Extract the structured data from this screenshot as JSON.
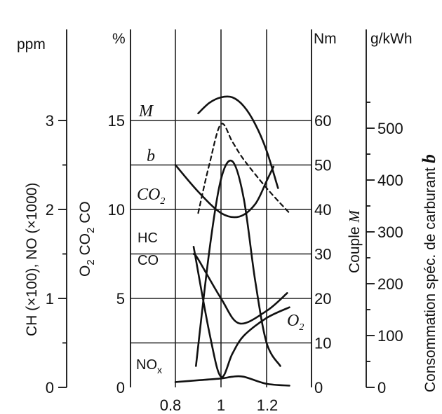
{
  "chart_data": {
    "type": "line",
    "x_axis": {
      "ticks": [
        0.8,
        1,
        1.2
      ],
      "tick_labels": [
        "0.8",
        "1",
        "1.2"
      ],
      "range": [
        0.78,
        1.32
      ]
    },
    "axes": {
      "ppm": {
        "unit": "ppm",
        "title": "CH (×100), NO (×1000)",
        "ticks": [
          0,
          1,
          2,
          3
        ],
        "range": [
          0,
          3.5
        ]
      },
      "percent": {
        "unit": "%",
        "title_parts": [
          "O",
          "2",
          "  CO",
          "2",
          "  CO"
        ],
        "ticks": [
          0,
          5,
          10,
          15
        ],
        "range": [
          0,
          17.5
        ]
      },
      "torque": {
        "unit": "Nm",
        "title_main": "Couple ",
        "title_symbol": "M",
        "ticks": [
          0,
          10,
          20,
          30,
          40,
          50,
          60
        ],
        "range": [
          0,
          70
        ]
      },
      "bsfc": {
        "unit": "g/kWh",
        "title_main": "Consommation spéc. de carburant ",
        "title_symbol": "b",
        "ticks": [
          0,
          100,
          200,
          300,
          400,
          500
        ],
        "range": [
          0,
          580
        ]
      }
    },
    "series": [
      {
        "name": "M",
        "italic": true,
        "axis": "percent",
        "style": "solid",
        "x": [
          0.9,
          0.95,
          1.0,
          1.05,
          1.1,
          1.15,
          1.2,
          1.25
        ],
        "y": [
          15.4,
          16.0,
          16.3,
          16.3,
          15.8,
          14.8,
          13.3,
          11.2
        ]
      },
      {
        "name": "b",
        "italic": true,
        "axis": "percent",
        "style": "solid",
        "x": [
          0.8,
          0.9,
          1.0,
          1.08,
          1.15,
          1.2,
          1.23
        ],
        "y": [
          12.5,
          11.0,
          9.8,
          9.6,
          10.3,
          11.6,
          12.4
        ]
      },
      {
        "name": "CO2",
        "label_main": "CO",
        "label_sub": "2",
        "italic": true,
        "axis": "percent",
        "style": "dashed",
        "x": [
          0.9,
          0.95,
          1.0,
          1.05,
          1.1,
          1.2,
          1.3
        ],
        "y": [
          9.8,
          12.6,
          14.8,
          13.8,
          12.8,
          11.2,
          9.8
        ]
      },
      {
        "name": "HC",
        "axis": "percent",
        "style": "solid",
        "x": [
          0.89,
          0.95,
          1.0,
          1.05,
          1.1,
          1.15,
          1.2,
          1.26
        ],
        "y": [
          1.2,
          7.8,
          11.7,
          12.7,
          10.6,
          6.0,
          2.5,
          1.2
        ]
      },
      {
        "name": "CO",
        "axis": "percent",
        "style": "solid",
        "x": [
          0.88,
          0.9,
          1.0,
          1.08,
          1.2,
          1.29
        ],
        "y": [
          7.5,
          7.2,
          5.0,
          3.6,
          4.3,
          5.3
        ]
      },
      {
        "name": "O2",
        "label_main": "O",
        "label_sub": "2",
        "italic": true,
        "axis": "percent",
        "style": "solid",
        "x": [
          0.88,
          0.95,
          1.0,
          1.05,
          1.1,
          1.2,
          1.3
        ],
        "y": [
          7.9,
          3.0,
          0.6,
          1.9,
          2.9,
          3.9,
          4.5
        ]
      },
      {
        "name": "NOx",
        "label_main": "NO",
        "label_sub": "x",
        "axis": "percent",
        "style": "solid",
        "x": [
          0.8,
          0.9,
          1.0,
          1.05,
          1.1,
          1.2,
          1.3
        ],
        "y": [
          0.3,
          0.4,
          0.5,
          0.6,
          0.6,
          0.2,
          0.1
        ]
      }
    ]
  }
}
